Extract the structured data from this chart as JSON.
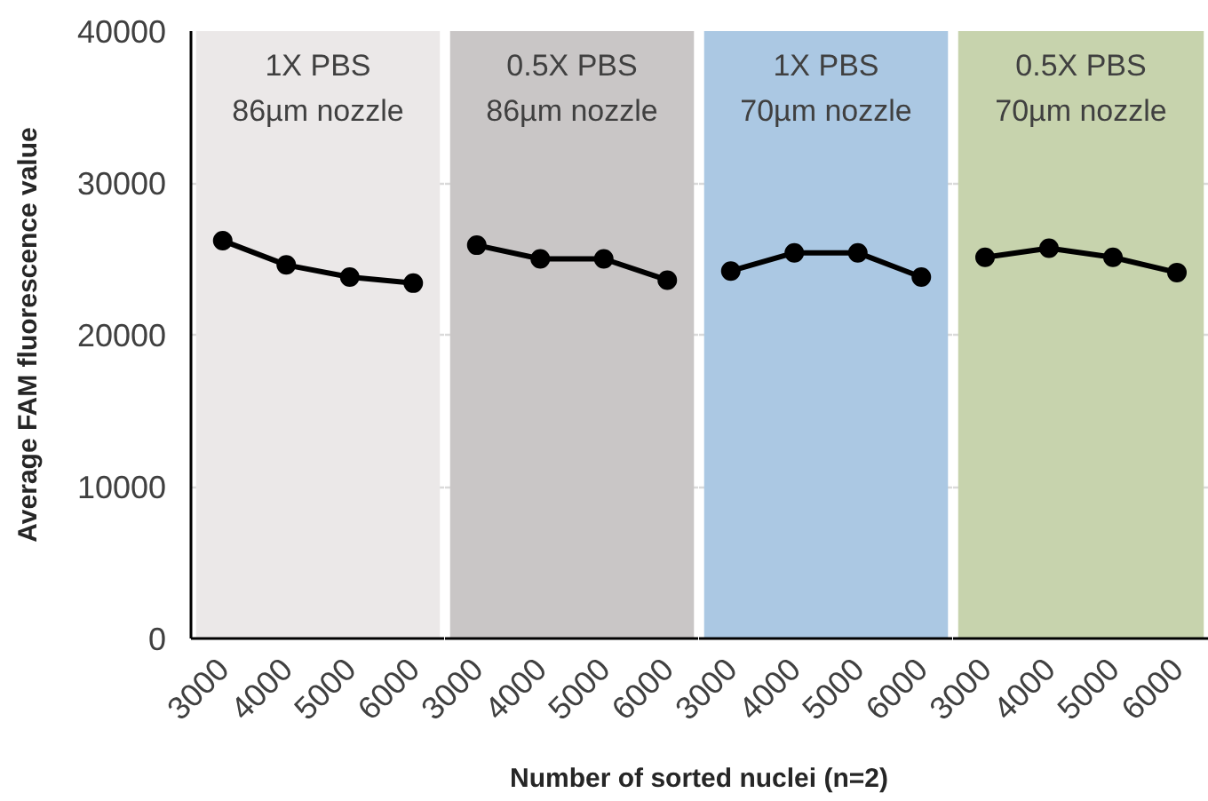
{
  "chart_data": [
    {
      "type": "line",
      "categories": [
        "3000",
        "4000",
        "5000",
        "6000"
      ],
      "series": [
        {
          "color": "#000000",
          "values": [
            26200,
            24600,
            23800,
            23400
          ]
        }
      ],
      "xlabel": "Number of sorted nuclei (n=2)",
      "ylabel": "Average FAM fluorescence value",
      "ylim": [
        0,
        40000
      ],
      "yticks": [
        0,
        10000,
        20000,
        30000,
        40000
      ],
      "grid": "y",
      "marker": "circle",
      "line_style": "solid",
      "bands": [
        {
          "axis": "x",
          "from": "3000",
          "to": "6000",
          "label": "1X PBS\n86µm nozzle",
          "color": "#ebe8e8"
        }
      ]
    },
    {
      "type": "line",
      "categories": [
        "3000",
        "4000",
        "5000",
        "6000"
      ],
      "series": [
        {
          "color": "#000000",
          "values": [
            25900,
            25000,
            25000,
            23600
          ]
        }
      ],
      "ylim": [
        0,
        40000
      ],
      "yticks": [
        0,
        10000,
        20000,
        30000,
        40000
      ],
      "tick_labels": "x",
      "grid": "y",
      "marker": "circle",
      "line_style": "solid",
      "bands": [
        {
          "axis": "x",
          "from": "3000",
          "to": "6000",
          "label": "0.5X PBS\n86µm nozzle",
          "color": "#c9c6c6"
        }
      ]
    },
    {
      "type": "line",
      "categories": [
        "3000",
        "4000",
        "5000",
        "6000"
      ],
      "series": [
        {
          "color": "#000000",
          "values": [
            24200,
            25400,
            25400,
            23800
          ]
        }
      ],
      "ylim": [
        0,
        40000
      ],
      "yticks": [
        0,
        10000,
        20000,
        30000,
        40000
      ],
      "tick_labels": "x",
      "grid": "y",
      "marker": "circle",
      "line_style": "solid",
      "bands": [
        {
          "axis": "x",
          "from": "3000",
          "to": "6000",
          "label": "1X PBS\n70µm nozzle",
          "color": "#abc8e3"
        }
      ]
    },
    {
      "type": "line",
      "categories": [
        "3000",
        "4000",
        "5000",
        "6000"
      ],
      "series": [
        {
          "color": "#000000",
          "values": [
            25100,
            25700,
            25100,
            24100
          ]
        }
      ],
      "ylim": [
        0,
        40000
      ],
      "yticks": [
        0,
        10000,
        20000,
        30000,
        40000
      ],
      "tick_labels": "x",
      "grid": "y",
      "marker": "circle",
      "line_style": "solid",
      "bands": [
        {
          "axis": "x",
          "from": "3000",
          "to": "6000",
          "label": "0.5X PBS\n70µm nozzle",
          "color": "#c7d3ad"
        }
      ]
    }
  ]
}
